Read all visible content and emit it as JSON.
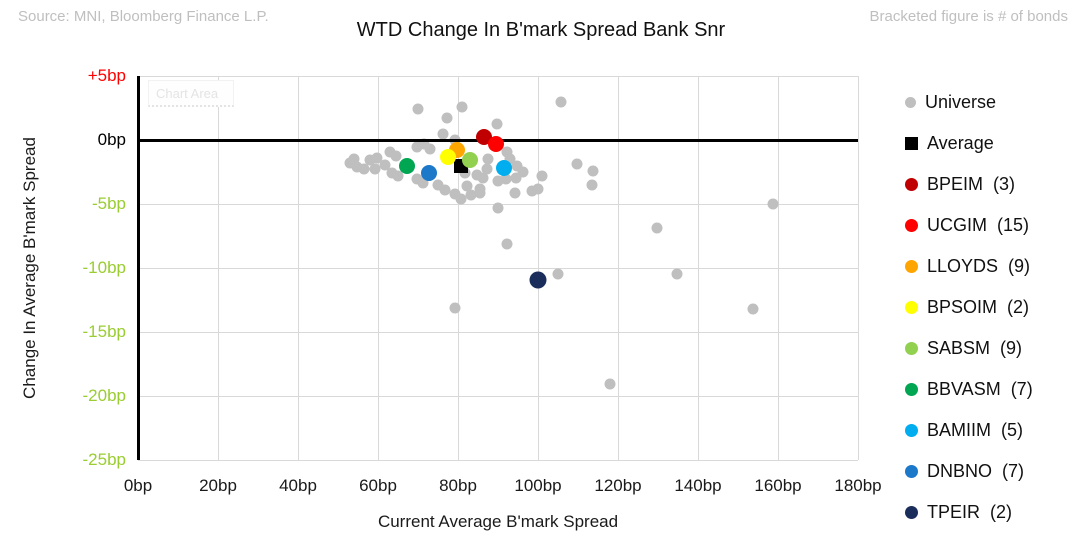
{
  "header": {
    "source": "Source: MNI, Bloomberg Finance L.P.",
    "note": "Bracketed figure is # of bonds"
  },
  "misc": {
    "chart_area_label": "Chart Area"
  },
  "chart_data": {
    "type": "scatter",
    "title": "WTD Change In B'mark Spread Bank Snr",
    "xlabel": "Current Average B'mark Spread",
    "ylabel": "Change In Average B'mark Spread",
    "xlim": [
      0,
      180
    ],
    "ylim": [
      -25,
      5
    ],
    "grid": true,
    "legend_position": "right",
    "grid_color": "#D9D9D9",
    "axis_color": "#000000",
    "x_ticks": [
      {
        "value": 0,
        "label": "0bp"
      },
      {
        "value": 20,
        "label": "20bp"
      },
      {
        "value": 40,
        "label": "40bp"
      },
      {
        "value": 60,
        "label": "60bp"
      },
      {
        "value": 80,
        "label": "80bp"
      },
      {
        "value": 100,
        "label": "100bp"
      },
      {
        "value": 120,
        "label": "120bp"
      },
      {
        "value": 140,
        "label": "140bp"
      },
      {
        "value": 160,
        "label": "160bp"
      },
      {
        "value": 180,
        "label": "180bp"
      }
    ],
    "y_ticks": [
      {
        "value": 5,
        "label": "+5bp",
        "color": "#FF0000"
      },
      {
        "value": 0,
        "label": "0bp",
        "color": "#000000"
      },
      {
        "value": -5,
        "label": "-5bp",
        "color": "#9ACD32"
      },
      {
        "value": -10,
        "label": "-10bp",
        "color": "#9ACD32"
      },
      {
        "value": -15,
        "label": "-15bp",
        "color": "#9ACD32"
      },
      {
        "value": -20,
        "label": "-20bp",
        "color": "#9ACD32"
      },
      {
        "value": -25,
        "label": "-25bp",
        "color": "#9ACD32"
      }
    ],
    "series": [
      {
        "name": "Universe",
        "color": "#BFBFBF",
        "marker": "circle",
        "size": 11,
        "legend_size": 11,
        "points": [
          [
            70.0,
            2.4
          ],
          [
            81.0,
            2.6
          ],
          [
            77.3,
            1.7
          ],
          [
            105.8,
            3.0
          ],
          [
            89.8,
            1.25
          ],
          [
            76.3,
            0.5
          ],
          [
            79.3,
            0.0
          ],
          [
            73.0,
            -0.7
          ],
          [
            69.8,
            -0.55
          ],
          [
            71.5,
            -0.3
          ],
          [
            54.0,
            -1.5
          ],
          [
            53.0,
            -1.8
          ],
          [
            54.8,
            -2.1
          ],
          [
            56.5,
            -2.3
          ],
          [
            58.0,
            -1.6
          ],
          [
            59.8,
            -1.4
          ],
          [
            59.3,
            -2.3
          ],
          [
            61.8,
            -1.95
          ],
          [
            63.0,
            -0.9
          ],
          [
            64.5,
            -1.25
          ],
          [
            63.5,
            -2.6
          ],
          [
            65.0,
            -2.8
          ],
          [
            69.8,
            -3.05
          ],
          [
            71.3,
            -3.35
          ],
          [
            75.0,
            -3.5
          ],
          [
            76.8,
            -3.9
          ],
          [
            79.3,
            -4.2
          ],
          [
            80.8,
            -4.6
          ],
          [
            83.3,
            -4.3
          ],
          [
            85.5,
            -4.15
          ],
          [
            81.8,
            -2.6
          ],
          [
            82.3,
            -3.6
          ],
          [
            84.8,
            -2.7
          ],
          [
            85.5,
            -3.8
          ],
          [
            86.3,
            -2.95
          ],
          [
            87.5,
            -1.5
          ],
          [
            87.3,
            -2.3
          ],
          [
            90.0,
            -3.2
          ],
          [
            92.3,
            -0.95
          ],
          [
            93.0,
            -1.5
          ],
          [
            94.8,
            -2.05
          ],
          [
            92.0,
            -3.05
          ],
          [
            94.5,
            -2.95
          ],
          [
            96.3,
            -2.5
          ],
          [
            94.3,
            -4.15
          ],
          [
            98.5,
            -4.0
          ],
          [
            90.0,
            -5.3
          ],
          [
            92.3,
            -8.15
          ],
          [
            100.0,
            -3.8
          ],
          [
            101.0,
            -2.8
          ],
          [
            105.0,
            -10.5
          ],
          [
            109.8,
            -1.9
          ],
          [
            113.8,
            -2.4
          ],
          [
            113.5,
            -3.5
          ],
          [
            79.3,
            -13.1
          ],
          [
            118.0,
            -19.1
          ],
          [
            129.8,
            -6.9
          ],
          [
            134.8,
            -10.45
          ],
          [
            153.8,
            -13.2
          ],
          [
            158.8,
            -5.0
          ]
        ]
      },
      {
        "name": "Average",
        "color": "#000000",
        "marker": "square",
        "size": 14,
        "legend_size": 13,
        "points": [
          [
            80.8,
            -2.05
          ]
        ]
      },
      {
        "name": "BPEIM",
        "count": 3,
        "color": "#C00000",
        "marker": "circle",
        "size": 16,
        "legend_size": 13,
        "points": [
          [
            86.4,
            0.2
          ]
        ]
      },
      {
        "name": "UCGIM",
        "count": 15,
        "color": "#FF0000",
        "marker": "circle",
        "size": 16,
        "legend_size": 13,
        "points": [
          [
            89.5,
            -0.3
          ]
        ]
      },
      {
        "name": "LLOYDS",
        "count": 9,
        "color": "#FFA500",
        "marker": "circle",
        "size": 16,
        "legend_size": 13,
        "points": [
          [
            79.8,
            -0.8
          ]
        ]
      },
      {
        "name": "BPSOIM",
        "count": 2,
        "color": "#FFFF00",
        "marker": "circle",
        "size": 16,
        "legend_size": 13,
        "points": [
          [
            77.5,
            -1.3
          ]
        ]
      },
      {
        "name": "SABSM",
        "count": 9,
        "color": "#92D050",
        "marker": "circle",
        "size": 16,
        "legend_size": 13,
        "points": [
          [
            82.9,
            -1.6
          ]
        ]
      },
      {
        "name": "BBVASM",
        "count": 7,
        "color": "#00A651",
        "marker": "circle",
        "size": 16,
        "legend_size": 13,
        "points": [
          [
            67.3,
            -2.0
          ]
        ]
      },
      {
        "name": "BAMIIM",
        "count": 5,
        "color": "#00AEEF",
        "marker": "circle",
        "size": 16,
        "legend_size": 13,
        "points": [
          [
            91.4,
            -2.2
          ]
        ]
      },
      {
        "name": "DNBNO",
        "count": 7,
        "color": "#1C78C8",
        "marker": "circle",
        "size": 16,
        "legend_size": 13,
        "points": [
          [
            72.7,
            -2.6
          ]
        ]
      },
      {
        "name": "TPEIR",
        "count": 2,
        "color": "#1B2D5B",
        "marker": "circle",
        "size": 17,
        "legend_size": 13,
        "points": [
          [
            100.0,
            -10.9
          ]
        ]
      }
    ]
  }
}
